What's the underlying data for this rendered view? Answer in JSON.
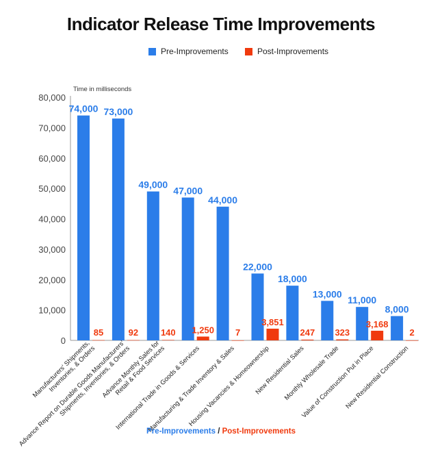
{
  "chart_data": {
    "type": "bar",
    "title": "Indicator Release Time Improvements",
    "ylabel": "Time in milliseconds",
    "ylim": [
      0,
      80000
    ],
    "yticks": [
      "0",
      "10,000",
      "20,000",
      "30,000",
      "40,000",
      "50,000",
      "60,000",
      "70,000",
      "80,000"
    ],
    "ytick_values": [
      0,
      10000,
      20000,
      30000,
      40000,
      50000,
      60000,
      70000,
      80000
    ],
    "categories": [
      [
        "Manufacturers' Shipments,",
        "Inventories, & Orders"
      ],
      [
        "Advance Report on Durable Goods Manufacturers'",
        "Shipments, Inventories, & Orders"
      ],
      [
        "Advance Monthly Sales for",
        "Retail & Food Services"
      ],
      [
        "International Trade in Goods & Services"
      ],
      [
        "Manufacturing & Trade Inventory & Sales"
      ],
      [
        "Housing Vacancies & Homeownership"
      ],
      [
        "New Residential Sales"
      ],
      [
        "Monthly Wholesale Trade"
      ],
      [
        "Value of Construction Put in Place"
      ],
      [
        "New Residential Construction"
      ]
    ],
    "series": [
      {
        "name": "Pre-Improvements",
        "color": "#2b7de9",
        "values": [
          74000,
          73000,
          49000,
          47000,
          44000,
          22000,
          18000,
          13000,
          11000,
          8000
        ],
        "labels": [
          "74,000",
          "73,000",
          "49,000",
          "47,000",
          "44,000",
          "22,000",
          "18,000",
          "13,000",
          "11,000",
          "8,000"
        ]
      },
      {
        "name": "Post-Improvements",
        "color": "#f03a0e",
        "values": [
          85,
          92,
          140,
          1250,
          7,
          3851,
          247,
          323,
          3168,
          2
        ],
        "labels": [
          "85",
          "92",
          "140",
          "1,250",
          "7",
          "3,851",
          "247",
          "323",
          "3,168",
          "2"
        ]
      }
    ],
    "legend_position": "top",
    "grid": false,
    "footer": {
      "pre": "Pre-Improvements",
      "separator": " / ",
      "post": "Post-Improvements"
    }
  }
}
